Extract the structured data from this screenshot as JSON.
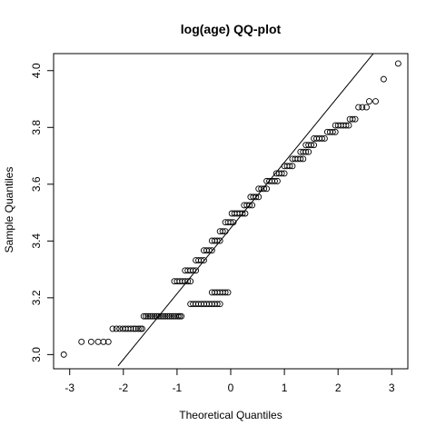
{
  "chart_data": {
    "type": "scatter",
    "title": "log(age) QQ-plot",
    "xlabel": "Theoretical Quantiles",
    "ylabel": "Sample Quantiles",
    "xlim": [
      -3.3,
      3.3
    ],
    "ylim": [
      2.95,
      4.06
    ],
    "x_ticks": [
      "-3",
      "-2",
      "-1",
      "0",
      "1",
      "2",
      "3"
    ],
    "y_ticks": [
      "3.0",
      "3.2",
      "3.4",
      "3.6",
      "3.8",
      "4.0"
    ],
    "grid": false,
    "legend": "none",
    "reference_line": {
      "x": [
        -2.1,
        2.7
      ],
      "y": [
        2.96,
        4.07
      ]
    },
    "points": [
      [
        -3.11,
        3.0
      ],
      [
        -2.78,
        3.045
      ],
      [
        -2.6,
        3.045
      ],
      [
        -2.47,
        3.045
      ],
      [
        -2.37,
        3.045
      ],
      [
        -2.28,
        3.045
      ],
      [
        -2.2,
        3.091
      ],
      [
        -2.13,
        3.091
      ],
      [
        -2.07,
        3.091
      ],
      [
        -2.01,
        3.091
      ],
      [
        -1.96,
        3.091
      ],
      [
        -1.91,
        3.091
      ],
      [
        -1.86,
        3.091
      ],
      [
        -1.81,
        3.091
      ],
      [
        -1.77,
        3.091
      ],
      [
        -1.72,
        3.091
      ],
      [
        -1.68,
        3.091
      ],
      [
        -1.65,
        3.091
      ],
      [
        -1.62,
        3.135
      ],
      [
        -1.58,
        3.135
      ],
      [
        -1.54,
        3.135
      ],
      [
        -1.5,
        3.135
      ],
      [
        -1.46,
        3.135
      ],
      [
        -1.42,
        3.135
      ],
      [
        -1.38,
        3.135
      ],
      [
        -1.34,
        3.135
      ],
      [
        -1.3,
        3.135
      ],
      [
        -1.26,
        3.135
      ],
      [
        -1.22,
        3.135
      ],
      [
        -1.18,
        3.135
      ],
      [
        -1.14,
        3.135
      ],
      [
        -1.1,
        3.135
      ],
      [
        -1.06,
        3.135
      ],
      [
        -1.02,
        3.135
      ],
      [
        -0.98,
        3.135
      ],
      [
        -0.95,
        3.135
      ],
      [
        -0.92,
        3.135
      ],
      [
        -0.75,
        3.178
      ],
      [
        -0.7,
        3.178
      ],
      [
        -0.65,
        3.178
      ],
      [
        -0.6,
        3.178
      ],
      [
        -0.55,
        3.178
      ],
      [
        -0.5,
        3.178
      ],
      [
        -0.45,
        3.178
      ],
      [
        -0.4,
        3.178
      ],
      [
        -0.35,
        3.178
      ],
      [
        -0.3,
        3.178
      ],
      [
        -0.25,
        3.178
      ],
      [
        -0.2,
        3.178
      ],
      [
        -0.35,
        3.219
      ],
      [
        -0.3,
        3.219
      ],
      [
        -0.25,
        3.219
      ],
      [
        -0.2,
        3.219
      ],
      [
        -0.15,
        3.219
      ],
      [
        -0.1,
        3.219
      ],
      [
        -0.05,
        3.219
      ],
      [
        -1.05,
        3.258
      ],
      [
        -1.0,
        3.258
      ],
      [
        -0.95,
        3.258
      ],
      [
        -0.9,
        3.258
      ],
      [
        -0.85,
        3.258
      ],
      [
        -0.8,
        3.258
      ],
      [
        -0.75,
        3.258
      ],
      [
        -0.85,
        3.296
      ],
      [
        -0.8,
        3.296
      ],
      [
        -0.75,
        3.296
      ],
      [
        -0.7,
        3.296
      ],
      [
        -0.65,
        3.296
      ],
      [
        -0.65,
        3.332
      ],
      [
        -0.6,
        3.332
      ],
      [
        -0.55,
        3.332
      ],
      [
        -0.5,
        3.332
      ],
      [
        -0.5,
        3.367
      ],
      [
        -0.45,
        3.367
      ],
      [
        -0.4,
        3.367
      ],
      [
        -0.35,
        3.367
      ],
      [
        -0.35,
        3.401
      ],
      [
        -0.3,
        3.401
      ],
      [
        -0.25,
        3.401
      ],
      [
        -0.2,
        3.401
      ],
      [
        -0.2,
        3.434
      ],
      [
        -0.15,
        3.434
      ],
      [
        -0.1,
        3.434
      ],
      [
        -0.1,
        3.466
      ],
      [
        -0.05,
        3.466
      ],
      [
        0.0,
        3.466
      ],
      [
        0.05,
        3.466
      ],
      [
        0.02,
        3.497
      ],
      [
        0.07,
        3.497
      ],
      [
        0.12,
        3.497
      ],
      [
        0.17,
        3.497
      ],
      [
        0.22,
        3.497
      ],
      [
        0.27,
        3.497
      ],
      [
        0.25,
        3.526
      ],
      [
        0.3,
        3.526
      ],
      [
        0.35,
        3.526
      ],
      [
        0.4,
        3.526
      ],
      [
        0.37,
        3.555
      ],
      [
        0.42,
        3.555
      ],
      [
        0.47,
        3.555
      ],
      [
        0.52,
        3.555
      ],
      [
        0.52,
        3.584
      ],
      [
        0.57,
        3.584
      ],
      [
        0.62,
        3.584
      ],
      [
        0.67,
        3.584
      ],
      [
        0.67,
        3.611
      ],
      [
        0.72,
        3.611
      ],
      [
        0.77,
        3.611
      ],
      [
        0.82,
        3.611
      ],
      [
        0.87,
        3.611
      ],
      [
        0.85,
        3.638
      ],
      [
        0.9,
        3.638
      ],
      [
        0.95,
        3.638
      ],
      [
        1.0,
        3.638
      ],
      [
        1.0,
        3.664
      ],
      [
        1.05,
        3.664
      ],
      [
        1.1,
        3.664
      ],
      [
        1.15,
        3.664
      ],
      [
        1.15,
        3.689
      ],
      [
        1.2,
        3.689
      ],
      [
        1.25,
        3.689
      ],
      [
        1.3,
        3.689
      ],
      [
        1.35,
        3.689
      ],
      [
        1.3,
        3.714
      ],
      [
        1.35,
        3.714
      ],
      [
        1.4,
        3.714
      ],
      [
        1.45,
        3.714
      ],
      [
        1.4,
        3.738
      ],
      [
        1.45,
        3.738
      ],
      [
        1.5,
        3.738
      ],
      [
        1.55,
        3.738
      ],
      [
        1.55,
        3.761
      ],
      [
        1.6,
        3.761
      ],
      [
        1.65,
        3.761
      ],
      [
        1.7,
        3.761
      ],
      [
        1.75,
        3.761
      ],
      [
        1.8,
        3.784
      ],
      [
        1.85,
        3.784
      ],
      [
        1.9,
        3.784
      ],
      [
        1.95,
        3.784
      ],
      [
        1.95,
        3.807
      ],
      [
        2.0,
        3.807
      ],
      [
        2.05,
        3.807
      ],
      [
        2.1,
        3.807
      ],
      [
        2.15,
        3.807
      ],
      [
        2.2,
        3.807
      ],
      [
        2.22,
        3.829
      ],
      [
        2.27,
        3.829
      ],
      [
        2.32,
        3.829
      ],
      [
        2.38,
        3.871
      ],
      [
        2.45,
        3.871
      ],
      [
        2.53,
        3.871
      ],
      [
        2.58,
        3.892
      ],
      [
        2.7,
        3.892
      ],
      [
        2.85,
        3.97
      ],
      [
        3.12,
        4.025
      ]
    ]
  }
}
